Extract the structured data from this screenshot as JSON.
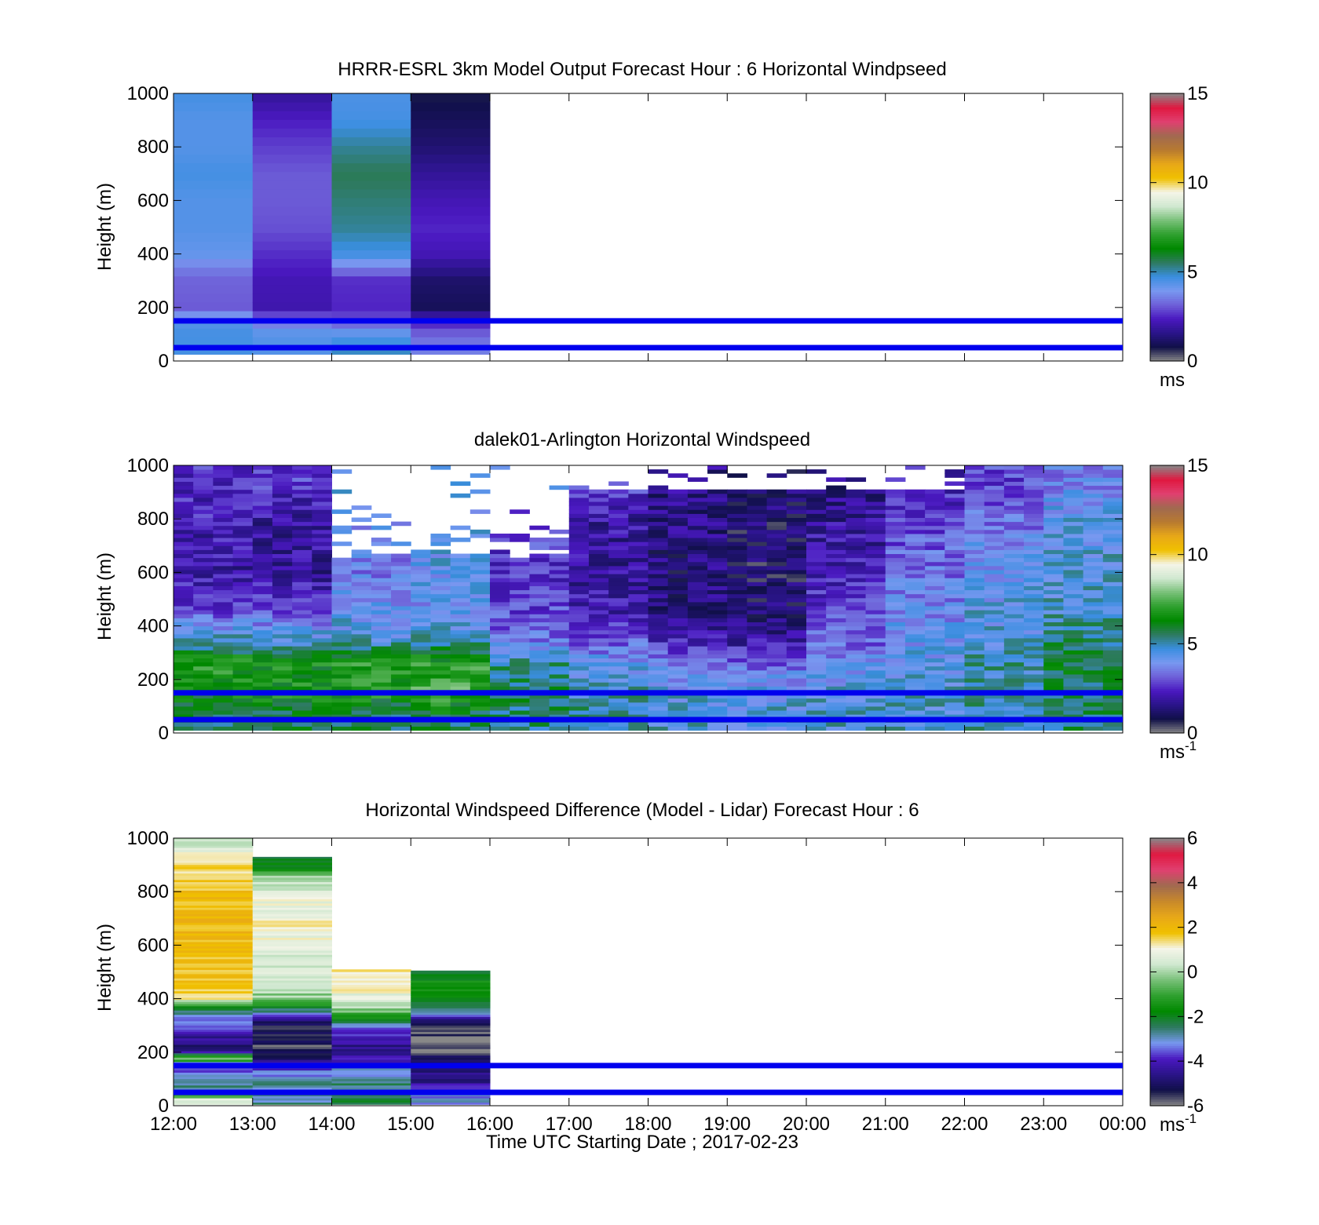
{
  "colors": {
    "hline": "#0000ee",
    "speed_scale": [
      "#888888",
      "#101048",
      "#2a1488",
      "#4a18c0",
      "#6e60d8",
      "#7898f0",
      "#3a8ee0",
      "#2e7a60",
      "#008800",
      "#2ea02e",
      "#78c078",
      "#d0e8d0",
      "#f5f5e8",
      "#f0c000",
      "#e8a818",
      "#b87a30",
      "#a06a50",
      "#e04070",
      "#e01840",
      "#888888"
    ],
    "diff_scale": [
      "#888888",
      "#101048",
      "#2a1488",
      "#4a18c0",
      "#7898f0",
      "#2e7a60",
      "#008800",
      "#2ea02e",
      "#78c078",
      "#d0e8d0",
      "#f5f5e8",
      "#f0c000",
      "#e8a818",
      "#c8892a",
      "#a06a50",
      "#e04070",
      "#e01840",
      "#888888"
    ]
  },
  "xaxis": {
    "ticks": [
      "12:00",
      "13:00",
      "14:00",
      "15:00",
      "16:00",
      "17:00",
      "18:00",
      "19:00",
      "20:00",
      "21:00",
      "22:00",
      "23:00",
      "00:00"
    ],
    "label": "Time UTC  Starting Date ; 2017-02-23"
  },
  "chart_data": [
    {
      "type": "heatmap",
      "title": "HRRR-ESRL 3km Model Output   Forecast Hour : 6 Horizontal Windpseed",
      "ylabel": "Height (m)",
      "ylim": [
        0,
        1000
      ],
      "yticks": [
        "0",
        "200",
        "400",
        "600",
        "800",
        "1000"
      ],
      "colorbar": {
        "min": 0,
        "max": 15,
        "ticks": [
          "0",
          "5",
          "10",
          "15"
        ],
        "unit": "ms",
        "unit_sup": ""
      },
      "horizontal_lines_m": [
        150,
        50
      ],
      "z_columns": [
        {
          "hour": "12:00",
          "speed_by_height": [
            [
              1000,
              4.6
            ],
            [
              900,
              4.4
            ],
            [
              800,
              4.4
            ],
            [
              700,
              4.6
            ],
            [
              600,
              4.4
            ],
            [
              500,
              4.4
            ],
            [
              400,
              4.2
            ],
            [
              350,
              3.6
            ],
            [
              300,
              3.2
            ],
            [
              200,
              3.1
            ],
            [
              150,
              4.4
            ],
            [
              100,
              4.6
            ],
            [
              50,
              4.6
            ]
          ]
        },
        {
          "hour": "13:00",
          "speed_by_height": [
            [
              1000,
              1.8
            ],
            [
              900,
              2.4
            ],
            [
              800,
              2.8
            ],
            [
              700,
              3.1
            ],
            [
              600,
              3.1
            ],
            [
              500,
              3.0
            ],
            [
              400,
              2.6
            ],
            [
              300,
              2.2
            ],
            [
              200,
              2.1
            ],
            [
              150,
              3.4
            ],
            [
              100,
              4.4
            ],
            [
              50,
              4.4
            ]
          ]
        },
        {
          "hour": "14:00",
          "speed_by_height": [
            [
              1000,
              4.5
            ],
            [
              900,
              4.6
            ],
            [
              800,
              5.2
            ],
            [
              700,
              5.6
            ],
            [
              600,
              5.4
            ],
            [
              500,
              5.2
            ],
            [
              400,
              4.6
            ],
            [
              300,
              2.6
            ],
            [
              200,
              2.5
            ],
            [
              150,
              3.0
            ],
            [
              100,
              4.4
            ],
            [
              50,
              4.9
            ]
          ]
        },
        {
          "hour": "15:00",
          "speed_by_height": [
            [
              1000,
              0.7
            ],
            [
              900,
              1.0
            ],
            [
              800,
              1.3
            ],
            [
              700,
              1.8
            ],
            [
              600,
              2.2
            ],
            [
              500,
              2.5
            ],
            [
              400,
              2.2
            ],
            [
              300,
              1.2
            ],
            [
              200,
              1.0
            ],
            [
              150,
              2.4
            ],
            [
              100,
              3.2
            ],
            [
              50,
              3.6
            ]
          ]
        }
      ]
    },
    {
      "type": "heatmap",
      "title": "dalek01-Arlington  Horizontal Windspeed",
      "ylabel": "Height (m)",
      "ylim": [
        0,
        1000
      ],
      "yticks": [
        "0",
        "200",
        "400",
        "600",
        "800",
        "1000"
      ],
      "colorbar": {
        "min": 0,
        "max": 15,
        "ticks": [
          "0",
          "5",
          "10",
          "15"
        ],
        "unit": "ms",
        "unit_sup": "-1"
      },
      "horizontal_lines_m": [
        150,
        50
      ],
      "z_columns_hourly": [
        {
          "hour": "12:00",
          "speed_by_height": [
            [
              50,
              5.5
            ],
            [
              150,
              6.5
            ],
            [
              250,
              6.8
            ],
            [
              350,
              4.8
            ],
            [
              450,
              2.8
            ],
            [
              600,
              2.0
            ],
            [
              800,
              2.3
            ],
            [
              950,
              2.6
            ]
          ]
        },
        {
          "hour": "13:00",
          "speed_by_height": [
            [
              50,
              5.8
            ],
            [
              150,
              6.6
            ],
            [
              250,
              6.5
            ],
            [
              350,
              4.6
            ],
            [
              450,
              3.0
            ],
            [
              600,
              1.8
            ],
            [
              800,
              2.0
            ],
            [
              950,
              2.8
            ]
          ]
        },
        {
          "hour": "14:00",
          "speed_by_height": [
            [
              50,
              5.5
            ],
            [
              150,
              6.8
            ],
            [
              250,
              6.8
            ],
            [
              350,
              4.6
            ],
            [
              450,
              4.2
            ],
            [
              600,
              3.6
            ],
            [
              800,
              4.0
            ],
            [
              950,
              4.4
            ]
          ]
        },
        {
          "hour": "15:00",
          "speed_by_height": [
            [
              50,
              5.6
            ],
            [
              150,
              7.4
            ],
            [
              250,
              6.9
            ],
            [
              350,
              4.8
            ],
            [
              450,
              4.0
            ],
            [
              600,
              4.3
            ],
            [
              800,
              4.4
            ],
            [
              950,
              4.6
            ]
          ]
        },
        {
          "hour": "16:00",
          "speed_by_height": [
            [
              50,
              5.4
            ],
            [
              150,
              5.6
            ],
            [
              250,
              5.2
            ],
            [
              350,
              3.4
            ],
            [
              450,
              2.9
            ],
            [
              600,
              2.6
            ],
            [
              800,
              3.0
            ],
            [
              950,
              4.4
            ]
          ]
        },
        {
          "hour": "17:00",
          "speed_by_height": [
            [
              50,
              5.2
            ],
            [
              150,
              4.9
            ],
            [
              250,
              4.2
            ],
            [
              350,
              3.0
            ],
            [
              450,
              2.2
            ],
            [
              600,
              1.8
            ],
            [
              800,
              2.0
            ],
            [
              950,
              3.2
            ]
          ]
        },
        {
          "hour": "18:00",
          "speed_by_height": [
            [
              50,
              4.8
            ],
            [
              150,
              4.4
            ],
            [
              250,
              3.6
            ],
            [
              350,
              2.2
            ],
            [
              450,
              1.4
            ],
            [
              600,
              1.4
            ],
            [
              800,
              1.6
            ],
            [
              950,
              1.6
            ]
          ]
        },
        {
          "hour": "19:00",
          "speed_by_height": [
            [
              50,
              4.6
            ],
            [
              150,
              4.4
            ],
            [
              250,
              3.3
            ],
            [
              350,
              1.8
            ],
            [
              450,
              1.2
            ],
            [
              600,
              1.0
            ],
            [
              800,
              1.2
            ],
            [
              950,
              1.4
            ]
          ]
        },
        {
          "hour": "20:00",
          "speed_by_height": [
            [
              50,
              4.7
            ],
            [
              150,
              4.5
            ],
            [
              250,
              3.8
            ],
            [
              350,
              3.2
            ],
            [
              450,
              2.8
            ],
            [
              600,
              2.2
            ],
            [
              800,
              1.8
            ],
            [
              950,
              1.4
            ]
          ]
        },
        {
          "hour": "21:00",
          "speed_by_height": [
            [
              50,
              4.8
            ],
            [
              150,
              4.6
            ],
            [
              250,
              4.4
            ],
            [
              350,
              4.1
            ],
            [
              450,
              3.8
            ],
            [
              600,
              3.4
            ],
            [
              800,
              2.8
            ],
            [
              950,
              2.2
            ]
          ]
        },
        {
          "hour": "22:00",
          "speed_by_height": [
            [
              50,
              5.0
            ],
            [
              150,
              5.0
            ],
            [
              250,
              5.0
            ],
            [
              350,
              4.6
            ],
            [
              450,
              4.4
            ],
            [
              600,
              4.2
            ],
            [
              800,
              3.4
            ],
            [
              950,
              2.8
            ]
          ]
        },
        {
          "hour": "23:00",
          "speed_by_height": [
            [
              50,
              5.4
            ],
            [
              150,
              5.6
            ],
            [
              250,
              5.8
            ],
            [
              350,
              5.4
            ],
            [
              450,
              4.8
            ],
            [
              600,
              4.6
            ],
            [
              800,
              4.4
            ],
            [
              950,
              3.6
            ]
          ]
        }
      ]
    },
    {
      "type": "heatmap",
      "title": "Horizontal Windspeed Difference (Model - Lidar) Forecast Hour : 6",
      "ylabel": "Height (m)",
      "ylim": [
        0,
        1000
      ],
      "yticks": [
        "0",
        "200",
        "400",
        "600",
        "800",
        "1000"
      ],
      "colorbar": {
        "min": -6,
        "max": 6,
        "ticks": [
          "-6",
          "-4",
          "-2",
          "0",
          "2",
          "4",
          "6"
        ],
        "unit": "ms",
        "unit_sup": "-1"
      },
      "horizontal_lines_m": [
        150,
        50
      ],
      "z_columns": [
        {
          "hour": "12:00",
          "top_m": 1000,
          "diff_by_height": [
            [
              1000,
              0.0
            ],
            [
              950,
              0.8
            ],
            [
              900,
              1.2
            ],
            [
              850,
              1.6
            ],
            [
              800,
              1.8
            ],
            [
              700,
              2.0
            ],
            [
              600,
              2.0
            ],
            [
              500,
              1.8
            ],
            [
              400,
              1.4
            ],
            [
              350,
              -2.8
            ],
            [
              300,
              -3.4
            ],
            [
              250,
              -4.4
            ],
            [
              200,
              -4.8
            ],
            [
              175,
              -0.2
            ],
            [
              150,
              -4.2
            ],
            [
              100,
              -2.6
            ],
            [
              50,
              -2.8
            ],
            [
              20,
              0.6
            ]
          ]
        },
        {
          "hour": "13:00",
          "top_m": 930,
          "diff_by_height": [
            [
              930,
              -2.6
            ],
            [
              880,
              -1.6
            ],
            [
              850,
              0.2
            ],
            [
              800,
              0.6
            ],
            [
              700,
              1.0
            ],
            [
              600,
              0.9
            ],
            [
              500,
              0.4
            ],
            [
              400,
              -0.2
            ],
            [
              350,
              -2.6
            ],
            [
              300,
              -5.2
            ],
            [
              250,
              -5.4
            ],
            [
              200,
              -5.6
            ],
            [
              150,
              -4.0
            ],
            [
              100,
              -3.0
            ],
            [
              50,
              -2.8
            ]
          ]
        },
        {
          "hour": "14:00",
          "top_m": 510,
          "diff_by_height": [
            [
              510,
              1.4
            ],
            [
              450,
              1.0
            ],
            [
              400,
              0.8
            ],
            [
              350,
              -0.4
            ],
            [
              300,
              -3.0
            ],
            [
              250,
              -4.0
            ],
            [
              200,
              -4.8
            ],
            [
              150,
              -3.6
            ],
            [
              100,
              -2.8
            ],
            [
              50,
              -2.4
            ]
          ]
        },
        {
          "hour": "15:00",
          "top_m": 505,
          "diff_by_height": [
            [
              505,
              -2.4
            ],
            [
              450,
              -1.2
            ],
            [
              400,
              -2.0
            ],
            [
              350,
              -2.8
            ],
            [
              300,
              -5.6
            ],
            [
              250,
              -5.8
            ],
            [
              200,
              -6.0
            ],
            [
              150,
              -4.4
            ],
            [
              100,
              -5.0
            ],
            [
              50,
              -3.2
            ]
          ]
        }
      ]
    }
  ]
}
